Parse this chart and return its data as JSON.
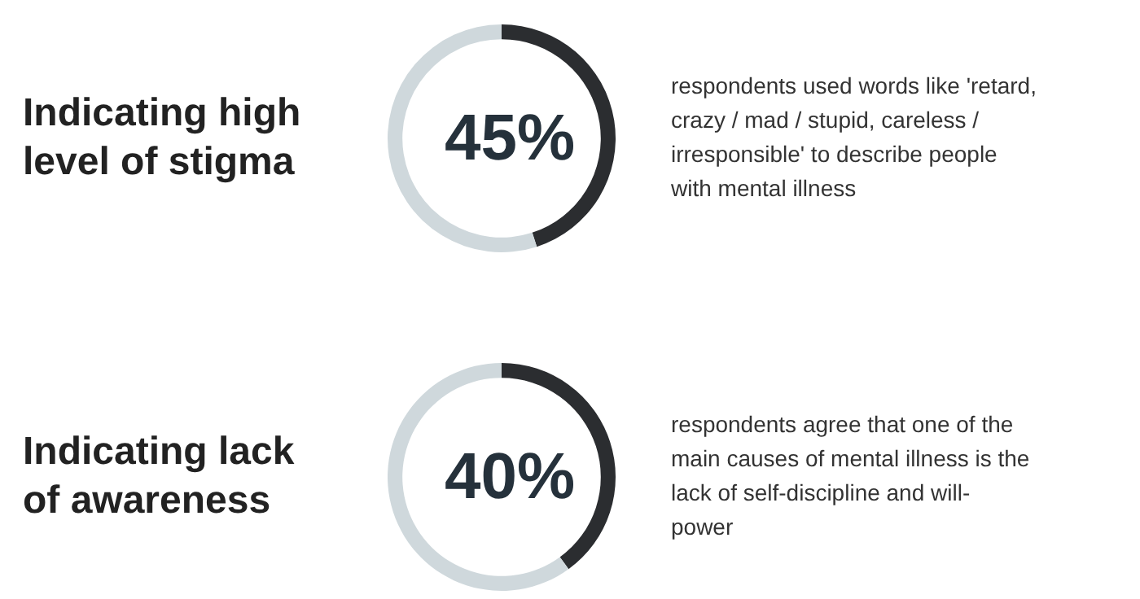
{
  "chart_data": [
    {
      "type": "donut",
      "title": "Indicating high level of stigma",
      "categories": [
        null,
        null
      ],
      "values": [
        45,
        55
      ],
      "colors": [
        "#2b2d30",
        "#cfd8dc"
      ],
      "value_labels": [
        "45%",
        null
      ],
      "annotations": [
        "respondents used words like 'retard, crazy / mad / stupid, careless / irresponsible' to describe people with mental illness"
      ]
    },
    {
      "type": "donut",
      "title": "Indicating lack of awareness",
      "categories": [
        null,
        null
      ],
      "values": [
        40,
        60
      ],
      "colors": [
        "#2b2d30",
        "#cfd8dc"
      ],
      "value_labels": [
        "40%",
        null
      ],
      "annotations": [
        "respondents agree that one of the main causes of mental illness is the lack of self-discipline and will-power"
      ]
    }
  ]
}
